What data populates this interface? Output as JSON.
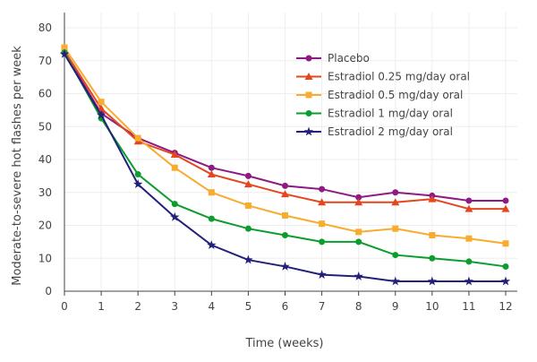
{
  "chart_data": {
    "type": "line",
    "xlabel": "Time (weeks)",
    "ylabel": "Moderate-to-severe hot flashes per week",
    "xlim": [
      0,
      12
    ],
    "ylim": [
      0,
      85
    ],
    "x": [
      0,
      1,
      2,
      3,
      4,
      5,
      6,
      7,
      8,
      9,
      10,
      11,
      12
    ],
    "xticks": [
      "0",
      "1",
      "2",
      "3",
      "4",
      "5",
      "6",
      "7",
      "8",
      "9",
      "10",
      "11",
      "12"
    ],
    "yticks": [
      "0",
      "10",
      "20",
      "30",
      "40",
      "50",
      "60",
      "70",
      "80"
    ],
    "grid": true,
    "legend_position": "top-right",
    "series": [
      {
        "name": "Placebo",
        "color": "#8e1a84",
        "marker": "circle",
        "values": [
          72.5,
          54,
          46.5,
          42,
          37.5,
          35,
          32,
          31,
          28.5,
          30,
          29,
          27.5,
          27.5
        ]
      },
      {
        "name": "Estradiol 0.25 mg/day oral",
        "color": "#e4471e",
        "marker": "triangle",
        "values": [
          73,
          55.5,
          45.5,
          41.5,
          35.5,
          32.5,
          29.5,
          27,
          27,
          27,
          28,
          25,
          25
        ]
      },
      {
        "name": "Estradiol 0.5 mg/day oral",
        "color": "#f8ac2f",
        "marker": "square",
        "values": [
          74,
          57.5,
          46.5,
          37.5,
          30,
          26,
          23,
          20.5,
          18,
          19,
          17,
          16,
          14.5
        ]
      },
      {
        "name": "Estradiol 1 mg/day oral",
        "color": "#0c9d2f",
        "marker": "circle",
        "values": [
          72.5,
          52.5,
          35.5,
          26.5,
          22,
          19,
          17,
          15,
          15,
          11,
          10,
          9,
          7.5
        ]
      },
      {
        "name": "Estradiol 2 mg/day oral",
        "color": "#23207a",
        "marker": "star",
        "values": [
          72,
          53.5,
          32.5,
          22.5,
          14,
          9.5,
          7.5,
          5,
          4.5,
          3,
          3,
          3,
          3
        ]
      }
    ]
  }
}
